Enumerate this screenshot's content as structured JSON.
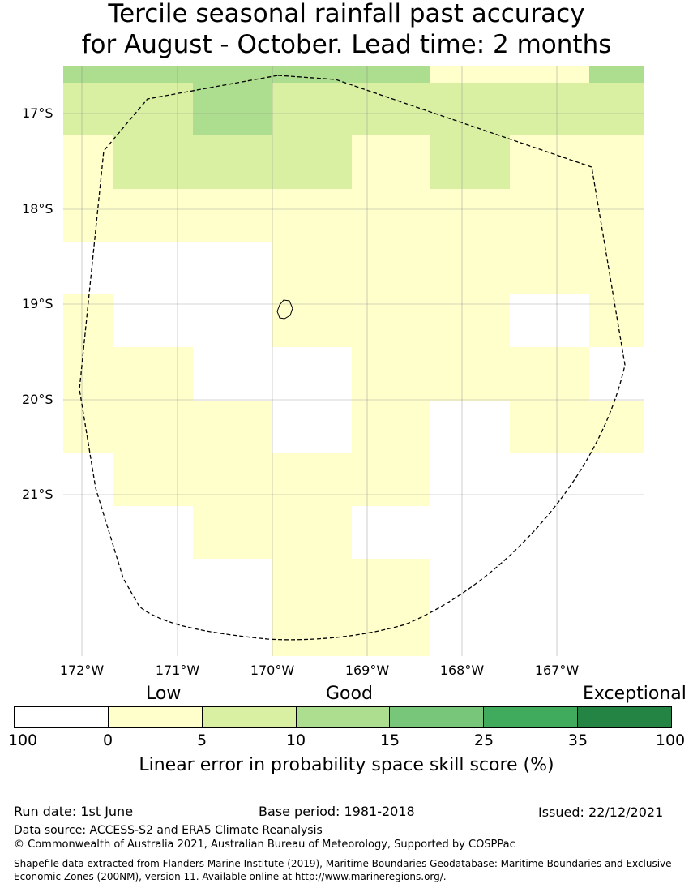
{
  "title": {
    "line1": "Tercile seasonal rainfall past accuracy",
    "line2": "for August - October. Lead time: 2 months"
  },
  "map": {
    "latitude_labels": [
      "17°S",
      "18°S",
      "19°S",
      "20°S",
      "21°S"
    ],
    "longitude_labels": [
      "172°W",
      "171°W",
      "170°W",
      "169°W",
      "168°W",
      "167°W"
    ]
  },
  "legend": {
    "categories": [
      "Low",
      "Good",
      "Exceptional"
    ],
    "ticks": [
      "100",
      "0",
      "5",
      "10",
      "15",
      "25",
      "35",
      "100"
    ],
    "colors": [
      "#ffffff",
      "#ffffcc",
      "#d9f0a3",
      "#addd8e",
      "#78c679",
      "#41ab5d",
      "#238443"
    ],
    "label": "Linear error in probability space skill score (%)"
  },
  "footer": {
    "run_date": "Run date: 1st June",
    "base_period": "Base period: 1981-2018",
    "issued": "Issued: 22/12/2021",
    "data_source": "Data source: ACCESS-S2 and ERA5 Climate Reanalysis",
    "copyright": "© Commonwealth of Australia 2021, Australian Bureau of Meteorology, Supported by COSPPac",
    "shapefile_note": "Shapefile data extracted from Flanders Marine Institute (2019), Maritime Boundaries Geodatabase: Maritime Boundaries and Exclusive Economic Zones (200NM), version 11. Available online at http://www.marineregions.org/."
  }
}
